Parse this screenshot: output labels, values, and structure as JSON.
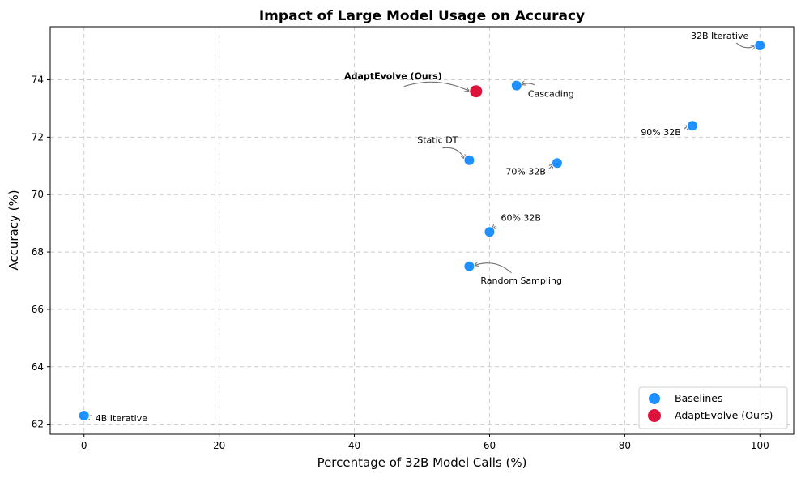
{
  "chart_data": {
    "type": "scatter",
    "title": "Impact of Large Model Usage on Accuracy",
    "xlabel": "Percentage of 32B Model Calls (%)",
    "ylabel": "Accuracy (%)",
    "xlim": [
      -5,
      105
    ],
    "ylim": [
      61.65,
      75.85
    ],
    "xticks": [
      0,
      20,
      40,
      60,
      80,
      100
    ],
    "yticks": [
      62,
      64,
      66,
      68,
      70,
      72,
      74
    ],
    "grid": true,
    "legend_position": "bottom-right",
    "series": [
      {
        "name": "Baselines",
        "color": "#1e90ff",
        "points": [
          {
            "label": "4B Iterative",
            "x": 0,
            "y": 62.3
          },
          {
            "label": "32B Iterative",
            "x": 100,
            "y": 75.2
          },
          {
            "label": "Cascading",
            "x": 64,
            "y": 73.8
          },
          {
            "label": "90% 32B",
            "x": 90,
            "y": 72.4
          },
          {
            "label": "70% 32B",
            "x": 70,
            "y": 71.1
          },
          {
            "label": "Static DT",
            "x": 57,
            "y": 71.2
          },
          {
            "label": "60% 32B",
            "x": 60,
            "y": 68.7
          },
          {
            "label": "Random Sampling",
            "x": 57,
            "y": 67.5
          }
        ]
      },
      {
        "name": "AdaptEvolve (Ours)",
        "color": "#dc143c",
        "points": [
          {
            "label": "AdaptEvolve (Ours)",
            "x": 58,
            "y": 73.6,
            "bold": true
          }
        ]
      }
    ]
  }
}
